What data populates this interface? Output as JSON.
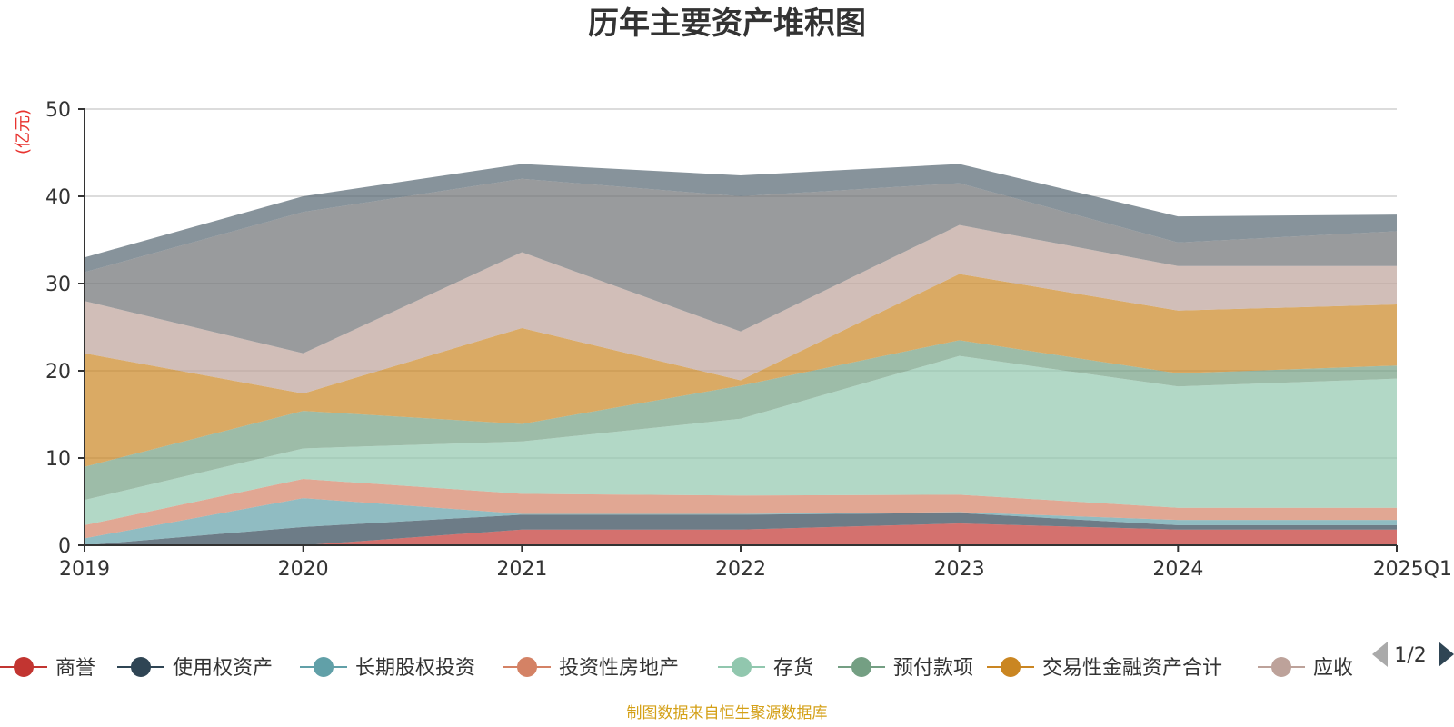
{
  "colors": {
    "grid": "#c8c8c8",
    "axis": "#333333",
    "legend_nav_inactive": "#aaaaaa",
    "legend_nav_active": "#2f4554"
  },
  "legend": {
    "page": "1/2",
    "truncated_label": "应收"
  },
  "footer": "制图数据来自恒生聚源数据库",
  "chart_data": {
    "type": "area",
    "stacked": true,
    "title": "历年主要资产堆积图",
    "ylabel": "(亿元)",
    "xlabel": "",
    "categories": [
      "2019",
      "2020",
      "2021",
      "2022",
      "2023",
      "2024",
      "2025Q1"
    ],
    "ylim": [
      0,
      50
    ],
    "yticks": [
      0,
      10,
      20,
      30,
      40,
      50
    ],
    "grid": true,
    "legend_position": "bottom",
    "series": [
      {
        "name": "商誉",
        "color": "#c23531",
        "values": [
          0,
          0,
          1.8,
          1.8,
          2.5,
          1.8,
          1.8
        ]
      },
      {
        "name": "使用权资产",
        "color": "#2f4554",
        "values": [
          0,
          2.1,
          1.7,
          1.7,
          1.2,
          0.5,
          0.5
        ]
      },
      {
        "name": "长期股权投资",
        "color": "#61a0a8",
        "values": [
          0.8,
          3.3,
          0.1,
          0.1,
          0.1,
          0.6,
          0.6
        ]
      },
      {
        "name": "投资性房地产",
        "color": "#d48265",
        "values": [
          1.5,
          2.2,
          2.3,
          2.1,
          2.0,
          1.4,
          1.4
        ]
      },
      {
        "name": "存货",
        "color": "#91c7ae",
        "values": [
          2.9,
          3.5,
          6.0,
          8.8,
          15.9,
          13.9,
          14.8
        ]
      },
      {
        "name": "预付款项",
        "color": "#749f83",
        "values": [
          3.8,
          4.3,
          2.0,
          3.8,
          1.8,
          1.5,
          1.5
        ]
      },
      {
        "name": "交易性金融资产合计",
        "color": "#ca8622",
        "values": [
          13.0,
          2.0,
          11.0,
          0.6,
          7.6,
          7.2,
          7.0
        ]
      },
      {
        "name": "应收",
        "color": "#bda29a",
        "values": [
          6.0,
          4.6,
          8.7,
          5.6,
          5.6,
          5.1,
          4.4
        ]
      },
      {
        "name": "",
        "color": "#6e7074",
        "values": [
          3.3,
          16.2,
          8.4,
          15.5,
          4.8,
          2.7,
          4.0
        ]
      },
      {
        "name": "",
        "color": "#546570",
        "values": [
          1.7,
          1.8,
          1.7,
          2.4,
          2.2,
          3.0,
          1.9
        ]
      }
    ]
  }
}
